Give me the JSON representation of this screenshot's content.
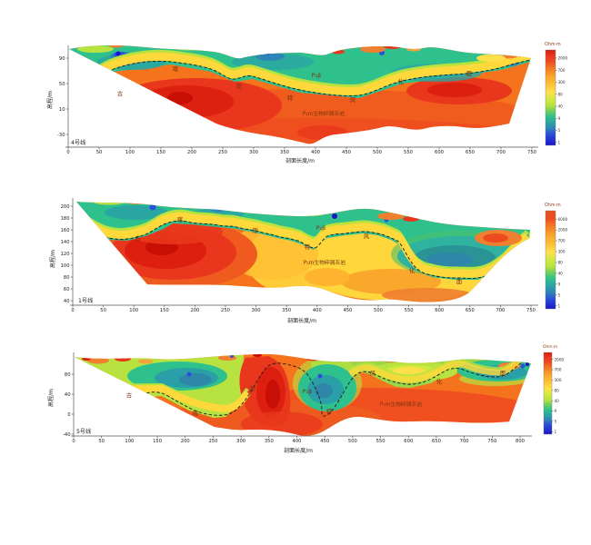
{
  "palette": {
    "low_resistivity": "#1a16c8",
    "mid_low": "#2b50d9",
    "teal": "#2aa6a2",
    "green": "#2fc18d",
    "lime": "#b8e23f",
    "yellow": "#ffe04a",
    "gold": "#ffc035",
    "orange": "#f5731d",
    "red": "#e8371d",
    "high_resistivity": "#d81c10"
  },
  "chart_data": [
    {
      "type": "heatmap",
      "line_label": "4号线",
      "xlabel": "剖面长度/m",
      "ylabel": "高程/m",
      "x_ticks": [
        0,
        50,
        100,
        150,
        200,
        250,
        300,
        350,
        400,
        450,
        500,
        550,
        600,
        650,
        700,
        750
      ],
      "y_ticks": [
        90,
        50,
        10,
        -30
      ],
      "colorbar": {
        "title": "Ohm·m",
        "ticks": [
          2000,
          700,
          300,
          80,
          40,
          9,
          5,
          1
        ]
      },
      "interface_phrase": "古喀斯特风化面",
      "annotations": [
        {
          "text": "古",
          "x": 132,
          "y": 67
        },
        {
          "text": "喀",
          "x": 193,
          "y": 40
        },
        {
          "text": "斯",
          "x": 263,
          "y": 59
        },
        {
          "text": "特",
          "x": 319,
          "y": 72
        },
        {
          "text": "风",
          "x": 388,
          "y": 74
        },
        {
          "text": "化",
          "x": 441,
          "y": 54
        },
        {
          "text": "面",
          "x": 516,
          "y": 45
        },
        {
          "text": "P₂β",
          "x": 348,
          "y": 47
        },
        {
          "text": "P₂m生物碎屑灰岩",
          "x": 356,
          "y": 89
        }
      ]
    },
    {
      "type": "heatmap",
      "line_label": "1号线",
      "xlabel": "剖面长度/m",
      "ylabel": "高程/m",
      "x_ticks": [
        0,
        50,
        100,
        150,
        200,
        250,
        300,
        350,
        400,
        450,
        500,
        550,
        600,
        650,
        700,
        750
      ],
      "y_ticks": [
        200,
        180,
        160,
        140,
        120,
        100,
        80,
        60,
        40
      ],
      "colorbar": {
        "title": "Ohm·m",
        "ticks": [
          6000,
          2000,
          700,
          300,
          80,
          40,
          9,
          5,
          1
        ]
      },
      "interface_phrase": "古喀斯特风化面",
      "annotations": [
        {
          "text": "古",
          "x": 152,
          "y": 54
        },
        {
          "text": "喀",
          "x": 198,
          "y": 34
        },
        {
          "text": "斯",
          "x": 281,
          "y": 46
        },
        {
          "text": "特",
          "x": 338,
          "y": 64
        },
        {
          "text": "风",
          "x": 403,
          "y": 52
        },
        {
          "text": "化",
          "x": 453,
          "y": 90
        },
        {
          "text": "面",
          "x": 505,
          "y": 102
        },
        {
          "text": "P₂β",
          "x": 353,
          "y": 43
        },
        {
          "text": "P₂m生物碎屑灰岩",
          "x": 357,
          "y": 81
        }
      ]
    },
    {
      "type": "heatmap",
      "line_label": "5号线",
      "xlabel": "剖面长度/m",
      "ylabel": "高程/m",
      "x_ticks": [
        0,
        50,
        100,
        150,
        200,
        250,
        300,
        350,
        400,
        450,
        500,
        550,
        600,
        650,
        700,
        750,
        800
      ],
      "y_ticks": [
        80,
        40,
        0,
        -40
      ],
      "colorbar": {
        "title": "Ohm·m",
        "ticks": [
          2000,
          700,
          300,
          80,
          40,
          9,
          5,
          1
        ]
      },
      "interface_phrase": "古喀斯特风化面",
      "annotations": [
        {
          "text": "古",
          "x": 142,
          "y": 65
        },
        {
          "text": "喀",
          "x": 215,
          "y": 85
        },
        {
          "text": "斯",
          "x": 278,
          "y": 58
        },
        {
          "text": "特",
          "x": 362,
          "y": 83
        },
        {
          "text": "风",
          "x": 410,
          "y": 41
        },
        {
          "text": "化",
          "x": 483,
          "y": 50
        },
        {
          "text": "面",
          "x": 553,
          "y": 41
        },
        {
          "text": "P₂β",
          "x": 338,
          "y": 61
        },
        {
          "text": "P₂m生物碎屑灰岩",
          "x": 441,
          "y": 75
        }
      ]
    }
  ]
}
